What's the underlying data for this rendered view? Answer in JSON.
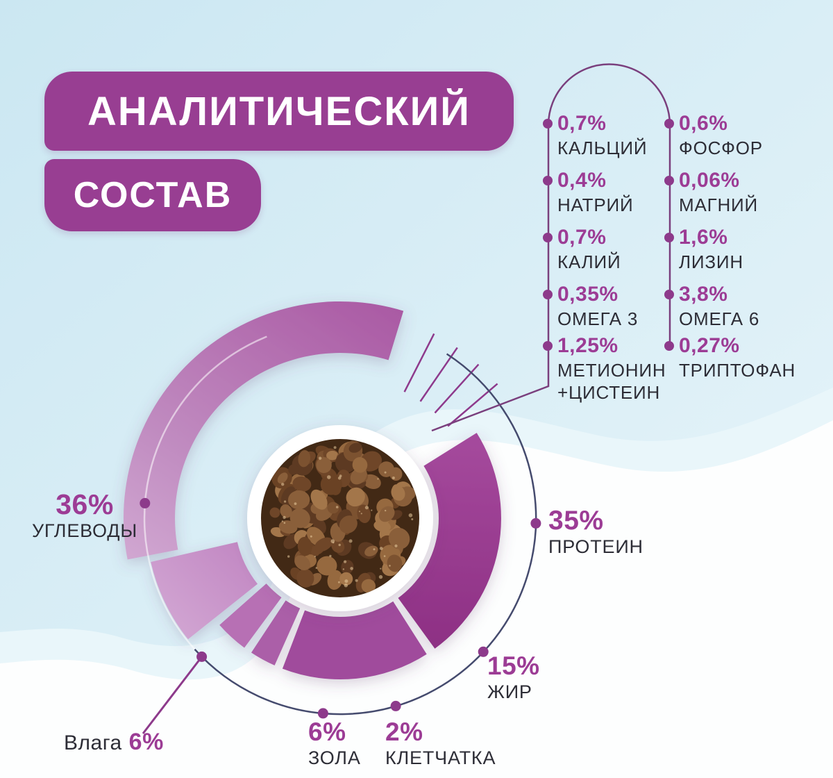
{
  "title": {
    "line1": "АНАЛИТИЧЕСКИЙ",
    "line2": "СОСТАВ"
  },
  "colors": {
    "banner": "#983e92",
    "value_text": "#9c3c95",
    "dark_text": "#2d2d36",
    "dot": "#8d3a8b",
    "outer_arc": "#454b6e",
    "background_top": "#cbe7f2",
    "background_bottom": "#ffffff"
  },
  "chart_data": {
    "type": "pie",
    "title": "АНАЛИТИЧЕСКИЙ СОСТАВ",
    "unit": "%",
    "legend_position": "around",
    "center_image": "kibble-photo",
    "segments": [
      {
        "key": "protein",
        "label": "ПРОТЕИН",
        "display": "35%",
        "value": 35,
        "color": "#993a90",
        "band": "inner",
        "start": 58,
        "end": 144
      },
      {
        "key": "fat",
        "label": "ЖИР",
        "display": "15%",
        "value": 15,
        "color": "#a04b9c",
        "band": "inner",
        "start": 147.5,
        "end": 201
      },
      {
        "key": "fiber",
        "label": "КЛЕТЧАТКА",
        "display": "2%",
        "value": 2,
        "color": "#ab5ea8",
        "band": "inner",
        "start": 204,
        "end": 213.5
      },
      {
        "key": "ash",
        "label": "ЗОЛА",
        "display": "6%",
        "value": 6,
        "color": "#b76fb4",
        "band": "inner",
        "start": 216.5,
        "end": 228.5
      },
      {
        "key": "moisture",
        "label": "Влага",
        "display": "6%",
        "value": 6,
        "color": "#cc9bce",
        "band": "mid",
        "start": 231.5,
        "end": 257
      },
      {
        "key": "carbs",
        "label": "УГЛЕВОДЫ",
        "display": "36%",
        "value": 36,
        "color": "#b269ad",
        "band": "outer",
        "start": 259,
        "end": 377
      }
    ],
    "micronutrient_ticks": 4
  },
  "nutrients": {
    "left": [
      {
        "value": "0,7%",
        "name": "КАЛЬЦИЙ"
      },
      {
        "value": "0,4%",
        "name": "НАТРИЙ"
      },
      {
        "value": "0,7%",
        "name": "КАЛИЙ"
      },
      {
        "value": "0,35%",
        "name": "ОМЕГА 3"
      },
      {
        "value": "1,25%",
        "name": "МЕТИОНИН +ЦИСТЕИН"
      }
    ],
    "right": [
      {
        "value": "0,6%",
        "name": "ФОСФОР"
      },
      {
        "value": "0,06%",
        "name": "МАГНИЙ"
      },
      {
        "value": "1,6%",
        "name": "ЛИЗИН"
      },
      {
        "value": "3,8%",
        "name": "ОМЕГА 6"
      },
      {
        "value": "0,27%",
        "name": "ТРИПТОФАН"
      }
    ]
  },
  "labels": {
    "carbs": {
      "value": "36%",
      "name": "УГЛЕВОДЫ"
    },
    "protein": {
      "value": "35%",
      "name": "ПРОТЕИН"
    },
    "fat": {
      "value": "15%",
      "name": "ЖИР"
    },
    "fiber": {
      "value": "2%",
      "name": "КЛЕТЧАТКА"
    },
    "ash": {
      "value": "6%",
      "name": "ЗОЛА"
    },
    "moisture": {
      "prefix": "Влага",
      "value": "6%"
    }
  }
}
